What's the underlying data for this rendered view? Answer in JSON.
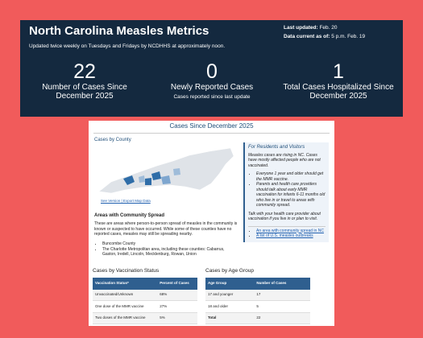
{
  "header": {
    "title": "North Carolina Measles Metrics",
    "subtitle": "Updated twice weekly on Tuesdays and Fridays by NCDHHS at approximately noon.",
    "last_updated_label": "Last updated:",
    "last_updated": "Feb. 20",
    "data_current_label": "Data current as of:",
    "data_current": "5 p.m. Feb. 19"
  },
  "metrics": [
    {
      "value": "22",
      "label": "Number of Cases Since December 2025"
    },
    {
      "value": "0",
      "label": "Newly Reported Cases",
      "note": "Cases reported since last update"
    },
    {
      "value": "1",
      "label": "Total Cases Hospitalized Since December 2025"
    }
  ],
  "card": {
    "title": "Cases Since December 2025",
    "map_title": "Cases by County",
    "map_links": "See Version | Export Map Data",
    "spread_title": "Areas with Community Spread",
    "spread_text": "These are areas where person-to-person spread of measles in the community is known or suspected to have occurred. While some of these counties have no reported cases, measles may still be spreading nearby.",
    "spread_list": [
      "Buncombe County",
      "The Charlotte Metropolitan area, including these counties: Cabarrus, Gaston, Iredell, Lincoln, Mecklenburg, Rowan, Union"
    ],
    "sidebar": {
      "title": "For Residents and Visitors",
      "intro": "Measles cases are rising in NC. Cases have mostly affected people who are not vaccinated.",
      "bullets": [
        "Everyone 1 year and older should get the MMR vaccine.",
        "Parents and health care providers should talk about early MMR vaccination for infants 6-11 months old who live in or travel to areas with community spread."
      ],
      "note": "Talk with your health care provider about vaccination if you live in or plan to visit.",
      "links": [
        "An area with community spread in NC",
        "A list of U.S. measles outbreaks"
      ]
    }
  },
  "vaccination_table": {
    "title": "Cases by Vaccination Status",
    "header": [
      "Vaccination Status*",
      "Percent of Cases"
    ],
    "rows": [
      [
        "Unvaccinated/Unknown",
        "68%"
      ],
      [
        "One dose of the MMR vaccine",
        "27%"
      ],
      [
        "Two doses of the MMR vaccine",
        "5%"
      ]
    ]
  },
  "age_table": {
    "title": "Cases by Age Group",
    "header": [
      "Age Group",
      "Number of Cases"
    ],
    "rows": [
      [
        "17 and younger",
        "17"
      ],
      [
        "18 and older",
        "5"
      ],
      [
        "Total",
        "22"
      ]
    ]
  }
}
